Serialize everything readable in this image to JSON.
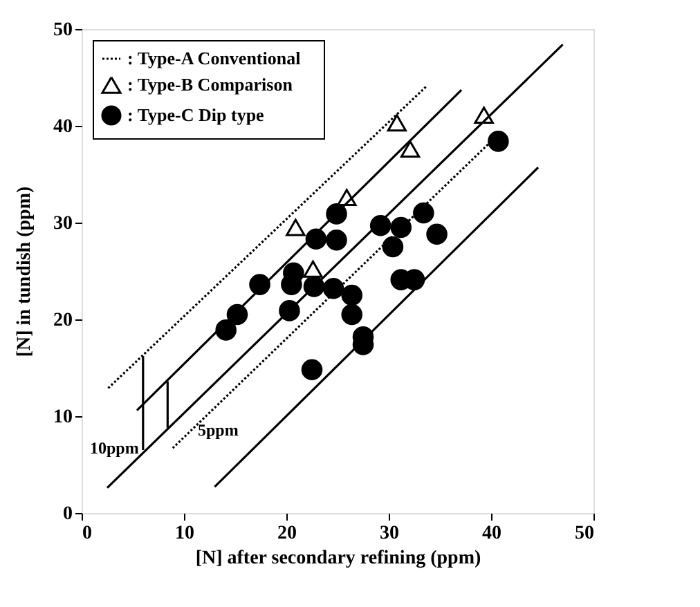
{
  "chart_data": {
    "type": "scatter",
    "xlabel": "[N] after secondary refining    (ppm)",
    "ylabel": "[N] in tundish    (ppm)",
    "xlim": [
      0,
      50
    ],
    "ylim": [
      0,
      50
    ],
    "xticks": [
      0,
      10,
      20,
      30,
      40,
      50
    ],
    "yticks": [
      0,
      10,
      20,
      30,
      40,
      50
    ],
    "grid": false,
    "legend": "top left",
    "series": [
      {
        "name": ": Type-A    Conventional",
        "type": "line",
        "line_style": "dotted",
        "color": "#000000",
        "x": [
          2.6,
          33.7
        ],
        "values": [
          12.9,
          44.1
        ]
      },
      {
        "type": "line",
        "line_style": "dotted",
        "color": "#000000",
        "x": [
          8.9,
          40.7
        ],
        "values": [
          6.7,
          39.1
        ]
      },
      {
        "type": "line",
        "line_style": "solid",
        "color": "#000000",
        "x": [
          2.5,
          47
        ],
        "values": [
          2.6,
          48.4
        ]
      },
      {
        "type": "line",
        "line_style": "solid",
        "color": "#000000",
        "x": [
          5.4,
          37.1
        ],
        "values": [
          10.6,
          43.7
        ]
      },
      {
        "type": "line",
        "line_style": "solid",
        "color": "#000000",
        "x": [
          13,
          44.6
        ],
        "values": [
          2.7,
          35.7
        ]
      },
      {
        "type": "line",
        "line_style": "solid",
        "color": "#000000",
        "x": [
          6,
          6
        ],
        "values": [
          16.2,
          6.5
        ]
      },
      {
        "type": "line",
        "line_style": "solid",
        "color": "#000000",
        "x": [
          8.4,
          8.4
        ],
        "values": [
          13.6,
          8.8
        ]
      },
      {
        "name": ": Type-B    Comparison",
        "marker": "triangle",
        "color": "#000000",
        "x": [
          30.8,
          39.3,
          32.1,
          25.9,
          20.9,
          22.6
        ],
        "values": [
          40.3,
          41.1,
          37.6,
          32.6,
          29.5,
          25.2
        ]
      },
      {
        "name": ": Type-C    Dip type",
        "marker": "circle",
        "color": "#000000",
        "x": [
          40.7,
          24.9,
          29.2,
          33.4,
          31.2,
          34.7,
          22.9,
          24.9,
          30.4,
          17.4,
          20.7,
          20.5,
          22.7,
          24.6,
          26.4,
          15.2,
          14.1,
          20.3,
          26.4,
          27.5,
          27.5,
          22.5,
          31.2,
          32.5
        ],
        "values": [
          38.4,
          30.9,
          29.7,
          31.0,
          29.5,
          28.8,
          28.3,
          28.2,
          27.5,
          23.6,
          24.8,
          23.6,
          23.4,
          23.2,
          22.5,
          20.5,
          18.9,
          20.9,
          20.5,
          18.2,
          17.4,
          14.8,
          24.1,
          24.1
        ]
      }
    ],
    "annotations": [
      "10ppm",
      "5ppm"
    ]
  }
}
